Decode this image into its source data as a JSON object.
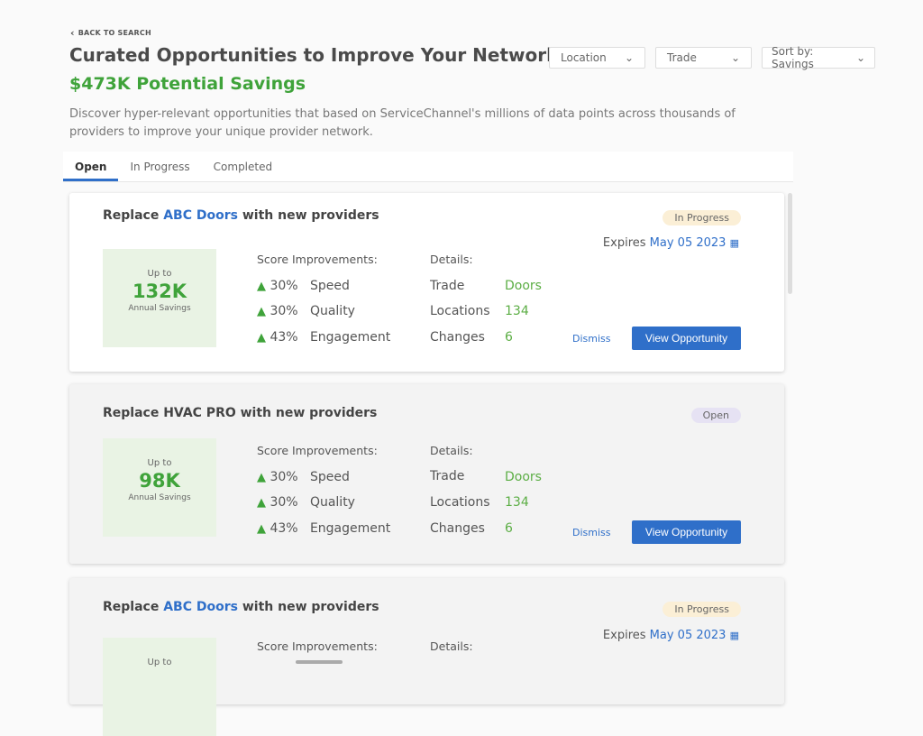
{
  "header": {
    "back_label": "BACK TO SEARCH",
    "title": "Curated Opportunities to Improve Your Network",
    "savings": "$473K Potential Savings",
    "description": "Discover hyper-relevant opportunities that based on ServiceChannel's millions of data points across thousands of providers to improve your unique provider network."
  },
  "filters": {
    "location": "Location",
    "trade": "Trade",
    "sort": "Sort by: Savings"
  },
  "tabs": [
    "Open",
    "In Progress",
    "Completed"
  ],
  "labels": {
    "score": "Score Improvements:",
    "details": "Details:",
    "up_to": "Up to",
    "annual": "Annual Savings",
    "trade": "Trade",
    "locations": "Locations",
    "changes": "Changes",
    "dismiss": "Dismiss",
    "view": "View Opportunity",
    "expires": "Expires",
    "speed": "Speed",
    "quality": "Quality",
    "engagement": "Engagement"
  },
  "cards": [
    {
      "prefix": "Replace ",
      "provider": "ABC Doors",
      "suffix": " with new providers",
      "status": "In Progress",
      "expires": "May 05 2023",
      "savings": "132K",
      "speed": "30%",
      "quality": "30%",
      "engagement": "43%",
      "trade": "Doors",
      "locations": "134",
      "changes": "6"
    },
    {
      "prefix": "Replace ",
      "provider": "HVAC PRO",
      "suffix": " with new providers",
      "status": "Open",
      "savings": "98K",
      "speed": "30%",
      "quality": "30%",
      "engagement": "43%",
      "trade": "Doors",
      "locations": "134",
      "changes": "6"
    },
    {
      "prefix": "Replace ",
      "provider": "ABC Doors",
      "suffix": " with new providers",
      "status": "In Progress",
      "expires": "May 05 2023"
    }
  ],
  "colors": {
    "accent": "#2f6fc9",
    "green": "#3fa33a",
    "in_progress_badge": "#fbefd6",
    "open_badge": "#e6e2f3"
  }
}
